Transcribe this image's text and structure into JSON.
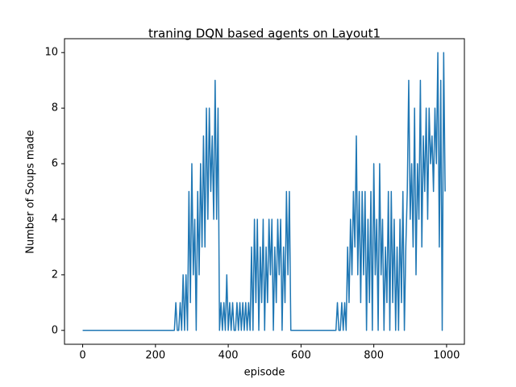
{
  "chart_data": {
    "type": "line",
    "title": "traning DQN based agents on Layout1",
    "xlabel": "episode",
    "ylabel": "Number of Soups made",
    "x": [
      0,
      4,
      8,
      12,
      16,
      20,
      24,
      28,
      32,
      36,
      40,
      44,
      48,
      52,
      56,
      60,
      64,
      68,
      72,
      76,
      80,
      84,
      88,
      92,
      96,
      100,
      104,
      108,
      112,
      116,
      120,
      124,
      128,
      132,
      136,
      140,
      144,
      148,
      152,
      156,
      160,
      164,
      168,
      172,
      176,
      180,
      184,
      188,
      192,
      196,
      200,
      204,
      208,
      212,
      216,
      220,
      224,
      228,
      232,
      236,
      240,
      244,
      248,
      252,
      256,
      260,
      264,
      268,
      272,
      276,
      280,
      284,
      288,
      292,
      296,
      300,
      304,
      308,
      312,
      316,
      320,
      324,
      328,
      332,
      336,
      340,
      344,
      348,
      352,
      356,
      360,
      364,
      368,
      372,
      376,
      380,
      384,
      388,
      392,
      396,
      400,
      404,
      408,
      412,
      416,
      420,
      424,
      428,
      432,
      436,
      440,
      444,
      448,
      452,
      456,
      460,
      464,
      468,
      472,
      476,
      480,
      484,
      488,
      492,
      496,
      500,
      504,
      508,
      512,
      516,
      520,
      524,
      528,
      532,
      536,
      540,
      544,
      548,
      552,
      556,
      560,
      564,
      568,
      572,
      576,
      580,
      584,
      588,
      592,
      596,
      600,
      604,
      608,
      612,
      616,
      620,
      624,
      628,
      632,
      636,
      640,
      644,
      648,
      652,
      656,
      660,
      664,
      668,
      672,
      676,
      680,
      684,
      688,
      692,
      696,
      700,
      704,
      708,
      712,
      716,
      720,
      724,
      728,
      732,
      736,
      740,
      744,
      748,
      752,
      756,
      760,
      764,
      768,
      772,
      776,
      780,
      784,
      788,
      792,
      796,
      800,
      804,
      808,
      812,
      816,
      820,
      824,
      828,
      832,
      836,
      840,
      844,
      848,
      852,
      856,
      860,
      864,
      868,
      872,
      876,
      880,
      884,
      888,
      892,
      896,
      900,
      904,
      908,
      912,
      916,
      920,
      924,
      928,
      932,
      936,
      940,
      944,
      948,
      952,
      956,
      960,
      964,
      968,
      972,
      976,
      980,
      984,
      988,
      992,
      996
    ],
    "series": [
      {
        "color": "#1f77b4",
        "values": [
          0,
          0,
          0,
          0,
          0,
          0,
          0,
          0,
          0,
          0,
          0,
          0,
          0,
          0,
          0,
          0,
          0,
          0,
          0,
          0,
          0,
          0,
          0,
          0,
          0,
          0,
          0,
          0,
          0,
          0,
          0,
          0,
          0,
          0,
          0,
          0,
          0,
          0,
          0,
          0,
          0,
          0,
          0,
          0,
          0,
          0,
          0,
          0,
          0,
          0,
          0,
          0,
          0,
          0,
          0,
          0,
          0,
          0,
          0,
          0,
          0,
          0,
          0,
          0,
          1,
          0,
          0,
          1,
          0,
          2,
          0,
          2,
          0,
          5,
          1,
          6,
          2,
          4,
          0,
          5,
          2,
          6,
          3,
          7,
          3,
          8,
          4,
          8,
          5,
          7,
          4,
          9,
          4,
          8,
          0,
          1,
          0,
          1,
          0,
          2,
          0,
          1,
          0,
          1,
          0,
          0,
          1,
          0,
          1,
          0,
          1,
          0,
          1,
          0,
          1,
          0,
          3,
          0,
          4,
          1,
          4,
          0,
          3,
          1,
          4,
          0,
          3,
          1,
          4,
          2,
          4,
          0,
          3,
          1,
          4,
          2,
          4,
          0,
          3,
          1,
          5,
          2,
          5,
          0,
          0,
          0,
          0,
          0,
          0,
          0,
          0,
          0,
          0,
          0,
          0,
          0,
          0,
          0,
          0,
          0,
          0,
          0,
          0,
          0,
          0,
          0,
          0,
          0,
          0,
          0,
          0,
          0,
          0,
          0,
          0,
          1,
          0,
          0,
          1,
          0,
          1,
          0,
          3,
          1,
          4,
          2,
          5,
          3,
          7,
          2,
          5,
          1,
          5,
          2,
          5,
          0,
          4,
          1,
          5,
          0,
          6,
          2,
          4,
          0,
          6,
          2,
          4,
          0,
          3,
          1,
          5,
          0,
          5,
          1,
          4,
          0,
          3,
          0,
          4,
          1,
          5,
          0,
          3,
          5,
          9,
          4,
          6,
          3,
          8,
          2,
          6,
          4,
          9,
          3,
          7,
          5,
          8,
          4,
          8,
          6,
          7,
          5,
          8,
          6,
          10,
          3,
          9,
          0,
          10,
          5
        ]
      }
    ],
    "xlim": [
      -49.95,
      1048.95
    ],
    "ylim": [
      -0.5,
      10.5
    ],
    "xticks": [
      0,
      200,
      400,
      600,
      800,
      1000
    ],
    "yticks": [
      0,
      2,
      4,
      6,
      8,
      10
    ],
    "grid": false
  }
}
